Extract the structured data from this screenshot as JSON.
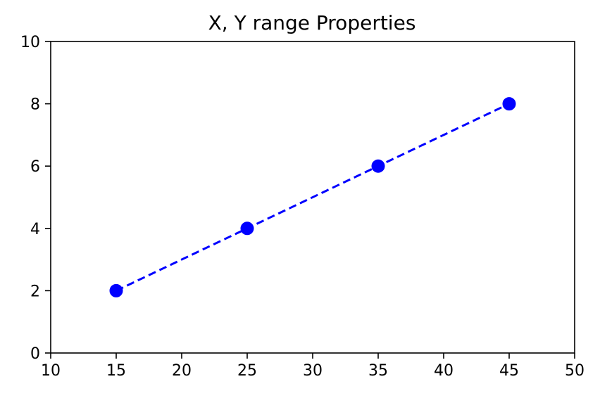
{
  "chart_data": {
    "type": "line",
    "title": "X, Y range Properties",
    "xlabel": "",
    "ylabel": "",
    "xlim": [
      10,
      50
    ],
    "ylim": [
      0,
      10
    ],
    "xticks": [
      10,
      15,
      20,
      25,
      30,
      35,
      40,
      45,
      50
    ],
    "yticks": [
      0,
      2,
      4,
      6,
      8,
      10
    ],
    "grid": false,
    "series": [
      {
        "x": [
          15,
          25,
          35,
          45
        ],
        "y": [
          2,
          4,
          6,
          8
        ],
        "color": "#0000ff",
        "line_style": "dashed",
        "marker": "circle"
      }
    ]
  }
}
